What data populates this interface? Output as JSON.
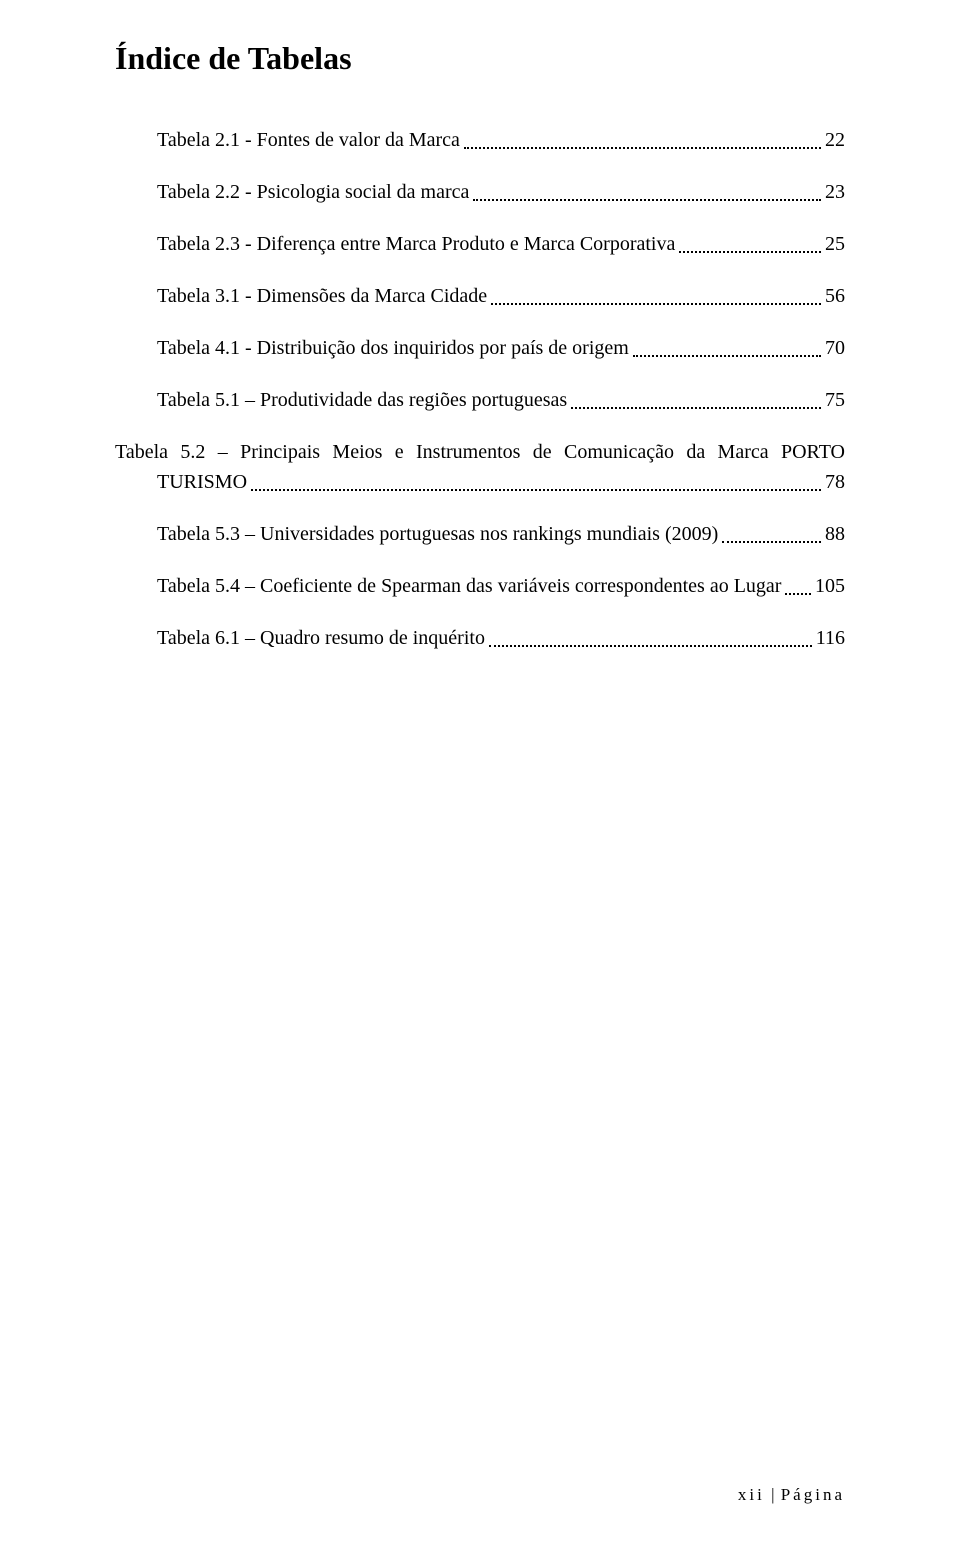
{
  "title": "Índice de Tabelas",
  "entries": [
    {
      "label": "Tabela 2.1 - Fontes de valor da Marca",
      "page": "22",
      "multiline": false
    },
    {
      "label": "Tabela 2.2 - Psicologia social da marca",
      "page": "23",
      "multiline": false
    },
    {
      "label": "Tabela 2.3 - Diferença entre Marca Produto e Marca Corporativa",
      "page": "25",
      "multiline": false
    },
    {
      "label": "Tabela 3.1 - Dimensões da Marca Cidade",
      "page": "56",
      "multiline": false
    },
    {
      "label": "Tabela 4.1 - Distribuição dos inquiridos por país de origem",
      "page": "70",
      "multiline": false
    },
    {
      "label": "Tabela 5.1 – Produtividade das regiões portuguesas",
      "page": "75",
      "multiline": false
    },
    {
      "line1": "Tabela 5.2 – Principais Meios e Instrumentos de Comunicação da Marca PORTO",
      "line2": "TURISMO",
      "page": "78",
      "multiline": true
    },
    {
      "label": "Tabela 5.3 – Universidades portuguesas nos rankings mundiais (2009)",
      "page": "88",
      "multiline": false
    },
    {
      "label": "Tabela 5.4 – Coeficiente de Spearman das variáveis correspondentes ao Lugar",
      "page": "105",
      "multiline": false
    },
    {
      "label": "Tabela 6.1 – Quadro resumo de inquérito",
      "page": "116",
      "multiline": false
    }
  ],
  "footer": {
    "roman": "xii",
    "label": "Página"
  }
}
